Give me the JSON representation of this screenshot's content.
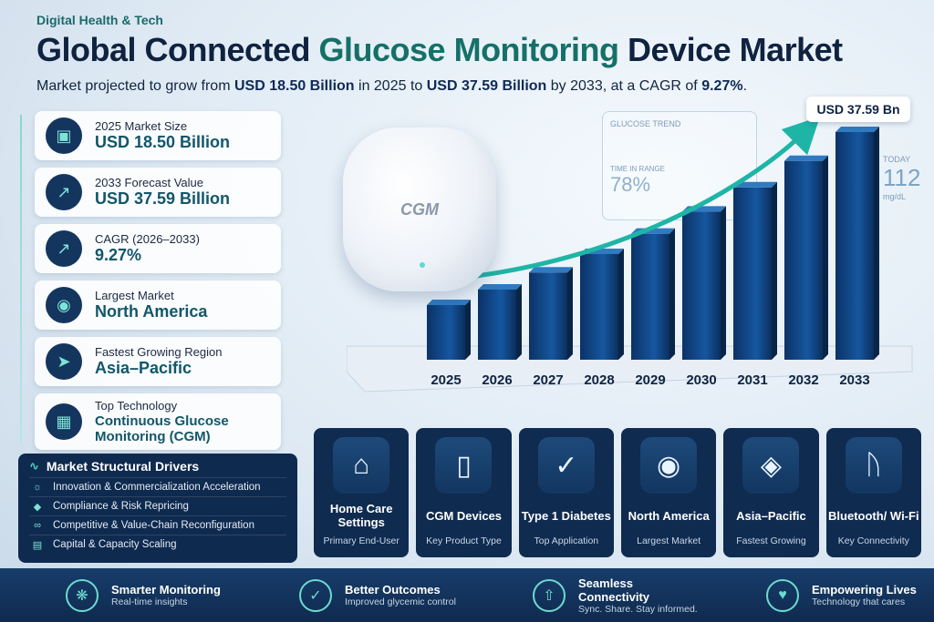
{
  "header": {
    "tag": "Digital Health & Tech",
    "title_a": "Global Connected ",
    "title_b": "Glucose Monitoring",
    "title_c": " Device Market",
    "sub_a": "Market projected to grow from ",
    "sub_b": "USD 18.50 Billion",
    "sub_c": " in 2025 to ",
    "sub_d": "USD 37.59 Billion",
    "sub_e": " by 2033, at a CAGR of ",
    "sub_f": "9.27%",
    "sub_g": "."
  },
  "kpis": [
    {
      "label": "2025 Market Size",
      "value": "USD 18.50 Billion",
      "icon": "briefcase-icon"
    },
    {
      "label": "2033 Forecast Value",
      "value": "USD 37.59 Billion",
      "icon": "growth-chart-icon"
    },
    {
      "label": "CAGR (2026–2033)",
      "value": "9.27%",
      "icon": "growth-chart-icon"
    },
    {
      "label": "Largest Market",
      "value": "North America",
      "icon": "globe-icon"
    },
    {
      "label": "Fastest Growing Region",
      "value": "Asia–Pacific",
      "icon": "rocket-icon"
    },
    {
      "label": "Top Technology",
      "value": "Continuous Glucose Monitoring (CGM)",
      "icon": "chip-icon"
    }
  ],
  "drivers": {
    "title": "Market Structural Drivers",
    "items": [
      "Innovation & Commercialization Acceleration",
      "Compliance & Risk Repricing",
      "Competitive & Value-Chain Reconfiguration",
      "Capital & Capacity Scaling"
    ]
  },
  "device": {
    "label": "CGM"
  },
  "glucose_panel": {
    "title": "GLUCOSE TREND",
    "range_label": "TIME IN RANGE",
    "range_value": "78%"
  },
  "today_panel": {
    "label": "TODAY",
    "value": "112",
    "unit": "mg/dL"
  },
  "callout": "USD 37.59 Bn",
  "chart_data": {
    "type": "bar",
    "categories": [
      "2025",
      "2026",
      "2027",
      "2028",
      "2029",
      "2030",
      "2031",
      "2032",
      "2033"
    ],
    "values": [
      18.5,
      20.21,
      22.09,
      24.13,
      26.37,
      28.81,
      31.48,
      34.4,
      37.59
    ],
    "unit": "USD Billion",
    "annotation": "USD 37.59 Bn",
    "colors": {
      "bar": "#0e3e78",
      "bar_top": "#2f7ac0",
      "arrow": "#1fb5a6"
    }
  },
  "tiles": [
    {
      "name": "Home Care Settings",
      "sub": "Primary End-User",
      "icon": "home-medical-icon"
    },
    {
      "name": "CGM Devices",
      "sub": "Key Product Type",
      "icon": "cgm-device-icon"
    },
    {
      "name": "Type 1 Diabetes",
      "sub": "Top Application",
      "icon": "glucose-meter-icon"
    },
    {
      "name": "North America",
      "sub": "Largest Market",
      "icon": "north-america-map-icon"
    },
    {
      "name": "Asia–Pacific",
      "sub": "Fastest Growing",
      "icon": "asia-map-icon"
    },
    {
      "name": "Bluetooth/ Wi-Fi",
      "sub": "Key Connectivity",
      "icon": "bluetooth-icon"
    }
  ],
  "footer": [
    {
      "title": "Smarter Monitoring",
      "sub": "Real-time insights",
      "icon": "brain-icon"
    },
    {
      "title": "Better Outcomes",
      "sub": "Improved glycemic control",
      "icon": "shield-check-icon"
    },
    {
      "title": "Seamless Connectivity",
      "sub": "Sync. Share. Stay informed.",
      "icon": "cloud-upload-icon"
    },
    {
      "title": "Empowering Lives",
      "sub": "Technology that cares",
      "icon": "heart-people-icon"
    }
  ]
}
